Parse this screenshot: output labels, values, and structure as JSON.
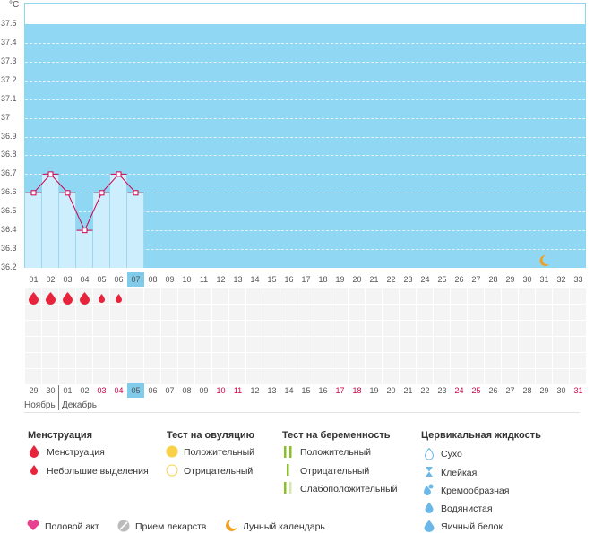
{
  "chart": {
    "unit": "°C",
    "y_ticks": [
      "37.5",
      "37.4",
      "37.3",
      "37.2",
      "37.1",
      "37",
      "36.9",
      "36.8",
      "36.7",
      "36.6",
      "36.5",
      "36.4",
      "36.3",
      "36.2"
    ],
    "cycle_days": [
      "01",
      "02",
      "03",
      "04",
      "05",
      "06",
      "07",
      "08",
      "09",
      "10",
      "11",
      "12",
      "13",
      "14",
      "15",
      "16",
      "17",
      "18",
      "19",
      "20",
      "21",
      "22",
      "23",
      "24",
      "25",
      "26",
      "27",
      "28",
      "29",
      "30",
      "31",
      "32",
      "33"
    ],
    "cycle_day_selected": "07",
    "calendar_dates": [
      {
        "d": "29",
        "red": false
      },
      {
        "d": "30",
        "red": false
      },
      {
        "d": "01",
        "red": false
      },
      {
        "d": "02",
        "red": false
      },
      {
        "d": "03",
        "red": true
      },
      {
        "d": "04",
        "red": true
      },
      {
        "d": "05",
        "red": false,
        "sel": true
      },
      {
        "d": "06",
        "red": false
      },
      {
        "d": "07",
        "red": false
      },
      {
        "d": "08",
        "red": false
      },
      {
        "d": "09",
        "red": false
      },
      {
        "d": "10",
        "red": true
      },
      {
        "d": "11",
        "red": true
      },
      {
        "d": "12",
        "red": false
      },
      {
        "d": "13",
        "red": false
      },
      {
        "d": "14",
        "red": false
      },
      {
        "d": "15",
        "red": false
      },
      {
        "d": "16",
        "red": false
      },
      {
        "d": "17",
        "red": true
      },
      {
        "d": "18",
        "red": true
      },
      {
        "d": "19",
        "red": false
      },
      {
        "d": "20",
        "red": false
      },
      {
        "d": "21",
        "red": false
      },
      {
        "d": "22",
        "red": false
      },
      {
        "d": "23",
        "red": false
      },
      {
        "d": "24",
        "red": true
      },
      {
        "d": "25",
        "red": true
      },
      {
        "d": "26",
        "red": false
      },
      {
        "d": "27",
        "red": false
      },
      {
        "d": "28",
        "red": false
      },
      {
        "d": "29",
        "red": false
      },
      {
        "d": "30",
        "red": false
      },
      {
        "d": "31",
        "red": true
      }
    ],
    "months": [
      "Ноябрь",
      "Декабрь"
    ],
    "moon_day": "31",
    "bleeding": [
      "big",
      "big",
      "big",
      "big",
      "small",
      "small"
    ]
  },
  "chart_data": {
    "type": "line",
    "x": [
      "01",
      "02",
      "03",
      "04",
      "05",
      "06",
      "07"
    ],
    "series": [
      {
        "values": [
          36.6,
          36.7,
          36.6,
          36.4,
          36.6,
          36.7,
          36.6
        ]
      }
    ],
    "ylim": [
      36.2,
      37.5
    ],
    "ylabel": "°C",
    "grid": true
  },
  "legend": {
    "menstruation": {
      "title": "Менструация",
      "items": [
        "Менструация",
        "Небольшие выделения"
      ]
    },
    "ovulation": {
      "title": "Тест на овуляцию",
      "items": [
        "Положительный",
        "Отрицательный"
      ]
    },
    "pregnancy": {
      "title": "Тест на беременность",
      "items": [
        "Положительный",
        "Отрицательный",
        "Слабоположительный"
      ]
    },
    "cervical": {
      "title": "Цервикальная жидкость",
      "items": [
        "Сухо",
        "Клейкая",
        "Кремообразная",
        "Водянистая",
        "Яичный белок"
      ]
    },
    "bottom": [
      "Половой акт",
      "Прием лекарств",
      "Лунный календарь"
    ]
  },
  "colors": {
    "plot_bg": "#8fd7f3",
    "bar": "#cdeefd",
    "line": "#d0004a",
    "drop_red": "#e8243c",
    "date_red": "#d0004a",
    "ovulation_yellow": "#f8d14a",
    "pregnancy_green": "#8bbf2a",
    "cervical_blue": "#6bb8e8",
    "heart_pink": "#e83f8e",
    "moon_orange": "#f0a020"
  }
}
